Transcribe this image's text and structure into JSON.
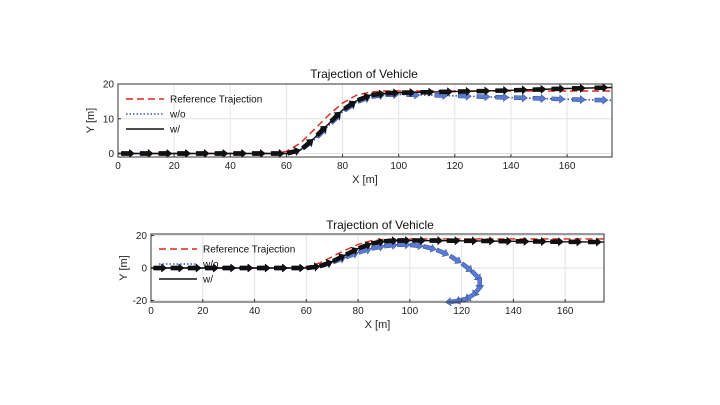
{
  "chart_data": [
    {
      "type": "line",
      "title": "Trajection of Vehicle",
      "xlabel": "X [m]",
      "ylabel": "Y [m]",
      "xlim": [
        0,
        176
      ],
      "ylim": [
        -1,
        20
      ],
      "xticks": [
        0,
        20,
        40,
        60,
        80,
        100,
        120,
        140,
        160
      ],
      "yticks": [
        0,
        10,
        20
      ],
      "grid": true,
      "legend_position": "top-left",
      "series": [
        {
          "name": "Reference Trajection",
          "style": "dashed",
          "color": "#e0261c",
          "x": [
            0,
            55,
            60,
            65,
            70,
            75,
            80,
            85,
            90,
            95,
            100,
            176
          ],
          "y": [
            0,
            0,
            0.6,
            3,
            7,
            11,
            14.5,
            16.8,
            17.7,
            18,
            18,
            18
          ]
        },
        {
          "name": "w/o",
          "style": "dotted",
          "color": "#3a57b0",
          "x": [
            0,
            60,
            65,
            70,
            75,
            80,
            85,
            90,
            95,
            100,
            110,
            120,
            140,
            160,
            176
          ],
          "y": [
            0,
            0,
            1,
            4,
            8,
            12,
            14.8,
            16.3,
            16.9,
            17,
            16.8,
            16.6,
            16.1,
            15.6,
            15.3
          ]
        },
        {
          "name": "w/",
          "style": "solid",
          "color": "#111111",
          "x": [
            0,
            60,
            65,
            70,
            75,
            80,
            85,
            90,
            95,
            100,
            120,
            140,
            160,
            176
          ],
          "y": [
            0,
            0,
            1,
            4.5,
            8.5,
            12.5,
            15.2,
            16.8,
            17.3,
            17.5,
            17.8,
            18.2,
            18.7,
            19
          ]
        }
      ]
    },
    {
      "type": "line",
      "title": "Trajection of Vehicle",
      "xlabel": "X [m]",
      "ylabel": "Y [m]",
      "xlim": [
        0,
        175
      ],
      "ylim": [
        -21,
        21
      ],
      "xticks": [
        0,
        20,
        40,
        60,
        80,
        100,
        120,
        140,
        160
      ],
      "yticks": [
        -20,
        0,
        20
      ],
      "grid": true,
      "legend_position": "top-left",
      "series": [
        {
          "name": "Reference Trajection",
          "style": "dashed",
          "color": "#e0261c",
          "x": [
            0,
            55,
            60,
            65,
            70,
            75,
            80,
            85,
            90,
            95,
            100,
            175
          ],
          "y": [
            0,
            0,
            0.6,
            3,
            7,
            11,
            14.5,
            16.8,
            17.7,
            18,
            18,
            18
          ]
        },
        {
          "name": "w/o",
          "style": "dotted",
          "color": "#3a57b0",
          "x": [
            0,
            60,
            65,
            70,
            75,
            80,
            85,
            90,
            95,
            100,
            105,
            110,
            115,
            120,
            124,
            127,
            127,
            125,
            122,
            118,
            115
          ],
          "y": [
            0,
            0,
            1,
            3.5,
            6.5,
            9.5,
            12,
            13.5,
            14.3,
            14.3,
            13.5,
            11.5,
            8,
            3,
            -2,
            -7,
            -12,
            -16,
            -19,
            -20.5,
            -21
          ]
        },
        {
          "name": "w/",
          "style": "solid",
          "color": "#111111",
          "x": [
            0,
            60,
            65,
            70,
            75,
            80,
            85,
            90,
            95,
            100,
            120,
            140,
            160,
            175
          ],
          "y": [
            0,
            0,
            1,
            4,
            8,
            12,
            15,
            16.5,
            17,
            17,
            16.8,
            16.5,
            16.2,
            16
          ]
        }
      ]
    }
  ]
}
